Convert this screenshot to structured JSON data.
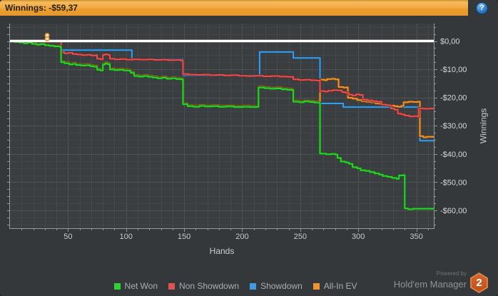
{
  "titlebar": {
    "title": "Winnings: -$59,37",
    "help": "?"
  },
  "colors": {
    "window_bg": "#35383B",
    "plot_bg": "#3B3E41",
    "grid_minor_v": "#46494C",
    "grid_minor_h": "#424548",
    "grid_major": "#4E5255",
    "axis": "#94989B",
    "tick_text": "#C6CACC",
    "zero_line": "#FFFFFF"
  },
  "chart_data": {
    "type": "line",
    "title": "",
    "xlabel": "Hands",
    "ylabel": "Winnings",
    "xlim": [
      0,
      365
    ],
    "ylim": [
      -66.5,
      6.2
    ],
    "grid": true,
    "legend_position": "bottom",
    "x_ticks": [
      50,
      100,
      150,
      200,
      250,
      300,
      350
    ],
    "x_minor_step": 10,
    "y_minor_step": 2.5,
    "y_ticks": [
      {
        "v": 0,
        "label": "$0,00"
      },
      {
        "v": -10,
        "label": "-$10,00"
      },
      {
        "v": -20,
        "label": "-$20,00"
      },
      {
        "v": -30,
        "label": "-$30,00"
      },
      {
        "v": -40,
        "label": "-$40,00"
      },
      {
        "v": -50,
        "label": "-$50,00"
      },
      {
        "v": -60,
        "label": "-$60,00"
      }
    ],
    "markers": [
      {
        "hand": 32,
        "value": 2.0
      },
      {
        "hand": 32,
        "value": 0.75
      }
    ],
    "series": [
      {
        "name": "Net Won",
        "color": "#2FD32F",
        "edge": "#176117",
        "points": [
          [
            0,
            0
          ],
          [
            4,
            -0.3
          ],
          [
            8,
            -0.5
          ],
          [
            12,
            -0.8
          ],
          [
            15,
            -0.6
          ],
          [
            19,
            -1.0
          ],
          [
            23,
            -1.3
          ],
          [
            26,
            -1.1
          ],
          [
            30,
            -1.5
          ],
          [
            34,
            -1.7
          ],
          [
            38,
            -1.9
          ],
          [
            43,
            -2.1
          ],
          [
            44,
            -7.5
          ],
          [
            47,
            -7.9
          ],
          [
            51,
            -8.3
          ],
          [
            54,
            -8.1
          ],
          [
            57,
            -8.5
          ],
          [
            61,
            -8.7
          ],
          [
            65,
            -8.6
          ],
          [
            69,
            -8.9
          ],
          [
            72,
            -9.1
          ],
          [
            75,
            -10.2
          ],
          [
            78,
            -10.4
          ],
          [
            80,
            -8.3
          ],
          [
            82,
            -7.9
          ],
          [
            84,
            -8.2
          ],
          [
            86,
            -10.1
          ],
          [
            90,
            -10.3
          ],
          [
            94,
            -10.2
          ],
          [
            98,
            -10.4
          ],
          [
            102,
            -10.5
          ],
          [
            104,
            -11.3
          ],
          [
            107,
            -12.4
          ],
          [
            111,
            -12.6
          ],
          [
            115,
            -12.4
          ],
          [
            119,
            -12.7
          ],
          [
            123,
            -12.9
          ],
          [
            127,
            -13.2
          ],
          [
            131,
            -13.0
          ],
          [
            135,
            -13.4
          ],
          [
            139,
            -13.2
          ],
          [
            143,
            -13.5
          ],
          [
            147,
            -13.6
          ],
          [
            149,
            -22.4
          ],
          [
            153,
            -23.1
          ],
          [
            158,
            -23.3
          ],
          [
            163,
            -23.0
          ],
          [
            168,
            -23.2
          ],
          [
            174,
            -23.1
          ],
          [
            180,
            -23.3
          ],
          [
            186,
            -23.2
          ],
          [
            193,
            -23.4
          ],
          [
            200,
            -23.3
          ],
          [
            207,
            -23.4
          ],
          [
            213,
            -23.3
          ],
          [
            214,
            -16.5
          ],
          [
            219,
            -16.7
          ],
          [
            224,
            -16.9
          ],
          [
            229,
            -16.8
          ],
          [
            234,
            -17.1
          ],
          [
            239,
            -17.3
          ],
          [
            243,
            -17.4
          ],
          [
            244,
            -21.5
          ],
          [
            249,
            -21.7
          ],
          [
            253,
            -21.4
          ],
          [
            258,
            -21.6
          ],
          [
            262,
            -21.8
          ],
          [
            266,
            -21.9
          ],
          [
            267,
            -39.9
          ],
          [
            272,
            -40.1
          ],
          [
            277,
            -40.0
          ],
          [
            280,
            -40.2
          ],
          [
            282,
            -41.4
          ],
          [
            285,
            -42.7
          ],
          [
            289,
            -43.0
          ],
          [
            292,
            -43.5
          ],
          [
            295,
            -44.7
          ],
          [
            299,
            -45.1
          ],
          [
            302,
            -45.8
          ],
          [
            306,
            -46.0
          ],
          [
            310,
            -46.4
          ],
          [
            314,
            -46.9
          ],
          [
            318,
            -47.3
          ],
          [
            321,
            -47.8
          ],
          [
            325,
            -48.1
          ],
          [
            329,
            -48.5
          ],
          [
            333,
            -48.8
          ],
          [
            335,
            -47.6
          ],
          [
            339,
            -47.5
          ],
          [
            340,
            -59.3
          ],
          [
            343,
            -59.6
          ],
          [
            347,
            -59.4
          ],
          [
            352,
            -59.4
          ],
          [
            358,
            -59.4
          ],
          [
            365,
            -59.37
          ]
        ]
      },
      {
        "name": "Non Showdown",
        "color": "#E05353",
        "edge": "#6E2424",
        "points": [
          [
            0,
            0
          ],
          [
            43,
            0
          ],
          [
            44,
            -4.0
          ],
          [
            47,
            -4.4
          ],
          [
            50,
            -4.2
          ],
          [
            54,
            -4.6
          ],
          [
            58,
            -4.8
          ],
          [
            62,
            -5.0
          ],
          [
            66,
            -4.9
          ],
          [
            70,
            -5.1
          ],
          [
            74,
            -5.0
          ],
          [
            75,
            -6.3
          ],
          [
            78,
            -6.5
          ],
          [
            80,
            -4.9
          ],
          [
            82,
            -4.7
          ],
          [
            84,
            -4.9
          ],
          [
            86,
            -6.3
          ],
          [
            90,
            -6.5
          ],
          [
            95,
            -6.4
          ],
          [
            100,
            -6.6
          ],
          [
            106,
            -6.5
          ],
          [
            112,
            -6.6
          ],
          [
            118,
            -6.5
          ],
          [
            124,
            -6.7
          ],
          [
            130,
            -6.6
          ],
          [
            136,
            -6.8
          ],
          [
            142,
            -6.7
          ],
          [
            147,
            -6.9
          ],
          [
            149,
            -11.7
          ],
          [
            154,
            -11.9
          ],
          [
            160,
            -12.0
          ],
          [
            166,
            -11.9
          ],
          [
            172,
            -12.1
          ],
          [
            178,
            -12.0
          ],
          [
            184,
            -12.2
          ],
          [
            190,
            -12.1
          ],
          [
            197,
            -12.3
          ],
          [
            204,
            -12.4
          ],
          [
            211,
            -12.3
          ],
          [
            218,
            -12.5
          ],
          [
            225,
            -12.4
          ],
          [
            232,
            -12.6
          ],
          [
            239,
            -12.7
          ],
          [
            244,
            -13.6
          ],
          [
            249,
            -13.8
          ],
          [
            254,
            -13.7
          ],
          [
            259,
            -13.9
          ],
          [
            264,
            -14.0
          ],
          [
            267,
            -17.7
          ],
          [
            271,
            -17.9
          ],
          [
            274,
            -17.6
          ],
          [
            278,
            -17.4
          ],
          [
            282,
            -17.5
          ],
          [
            286,
            -18.1
          ],
          [
            289,
            -18.4
          ],
          [
            292,
            -19.0
          ],
          [
            295,
            -19.3
          ],
          [
            298,
            -18.9
          ],
          [
            301,
            -19.1
          ],
          [
            304,
            -20.8
          ],
          [
            308,
            -21.0
          ],
          [
            312,
            -21.3
          ],
          [
            316,
            -21.5
          ],
          [
            320,
            -22.5
          ],
          [
            324,
            -22.7
          ],
          [
            328,
            -23.9
          ],
          [
            331,
            -24.3
          ],
          [
            334,
            -25.7
          ],
          [
            337,
            -26.0
          ],
          [
            340,
            -26.4
          ],
          [
            344,
            -26.7
          ],
          [
            348,
            -26.6
          ],
          [
            351,
            -26.8
          ],
          [
            352,
            -23.9
          ],
          [
            357,
            -24.0
          ],
          [
            361,
            -23.9
          ],
          [
            365,
            -23.9
          ]
        ]
      },
      {
        "name": "Showdown",
        "color": "#419BE0",
        "edge": "#1A476B",
        "points": [
          [
            0,
            0
          ],
          [
            43,
            0
          ],
          [
            44,
            -3.2
          ],
          [
            104,
            -3.2
          ],
          [
            105,
            -6.5
          ],
          [
            148,
            -6.5
          ],
          [
            149,
            -12.2
          ],
          [
            214,
            -12.3
          ],
          [
            215,
            -3.9
          ],
          [
            243,
            -3.9
          ],
          [
            244,
            -6.0
          ],
          [
            266,
            -6.0
          ],
          [
            267,
            -22.1
          ],
          [
            286,
            -22.1
          ],
          [
            287,
            -23.4
          ],
          [
            352,
            -23.4
          ],
          [
            353,
            -35.3
          ],
          [
            365,
            -35.3
          ]
        ]
      },
      {
        "name": "All-In EV",
        "color": "#EE9330",
        "edge": "#6E4413",
        "points": [
          [
            0,
            0
          ],
          [
            4,
            -0.2
          ],
          [
            8,
            -0.4
          ],
          [
            12,
            -0.6
          ],
          [
            15,
            -0.5
          ],
          [
            19,
            -0.8
          ],
          [
            23,
            -1.1
          ],
          [
            26,
            -0.9
          ],
          [
            30,
            -1.3
          ],
          [
            34,
            -1.5
          ],
          [
            38,
            -1.7
          ],
          [
            43,
            -1.9
          ],
          [
            44,
            -7.2
          ],
          [
            47,
            -7.6
          ],
          [
            51,
            -8.0
          ],
          [
            54,
            -7.8
          ],
          [
            57,
            -8.2
          ],
          [
            61,
            -8.4
          ],
          [
            65,
            -8.3
          ],
          [
            69,
            -8.6
          ],
          [
            72,
            -8.8
          ],
          [
            75,
            -9.9
          ],
          [
            78,
            -10.1
          ],
          [
            80,
            -8.0
          ],
          [
            82,
            -7.6
          ],
          [
            84,
            -7.9
          ],
          [
            86,
            -9.8
          ],
          [
            90,
            -10.0
          ],
          [
            94,
            -9.9
          ],
          [
            98,
            -10.1
          ],
          [
            102,
            -10.2
          ],
          [
            104,
            -11.0
          ],
          [
            107,
            -12.1
          ],
          [
            111,
            -12.3
          ],
          [
            115,
            -12.1
          ],
          [
            119,
            -12.4
          ],
          [
            123,
            -12.6
          ],
          [
            127,
            -12.9
          ],
          [
            131,
            -12.7
          ],
          [
            135,
            -13.1
          ],
          [
            139,
            -12.9
          ],
          [
            143,
            -13.2
          ],
          [
            147,
            -13.3
          ],
          [
            149,
            -22.1
          ],
          [
            153,
            -22.8
          ],
          [
            158,
            -23.0
          ],
          [
            163,
            -22.7
          ],
          [
            168,
            -22.9
          ],
          [
            174,
            -22.8
          ],
          [
            180,
            -23.0
          ],
          [
            186,
            -22.9
          ],
          [
            193,
            -23.1
          ],
          [
            200,
            -23.0
          ],
          [
            207,
            -23.1
          ],
          [
            213,
            -23.0
          ],
          [
            214,
            -16.2
          ],
          [
            219,
            -16.4
          ],
          [
            224,
            -16.6
          ],
          [
            229,
            -16.5
          ],
          [
            234,
            -16.8
          ],
          [
            239,
            -17.0
          ],
          [
            243,
            -17.1
          ],
          [
            244,
            -21.2
          ],
          [
            249,
            -21.4
          ],
          [
            253,
            -21.1
          ],
          [
            258,
            -21.3
          ],
          [
            262,
            -21.5
          ],
          [
            266,
            -21.6
          ],
          [
            267,
            -13.7
          ],
          [
            271,
            -13.9
          ],
          [
            273,
            -13.5
          ],
          [
            277,
            -13.4
          ],
          [
            280,
            -13.6
          ],
          [
            283,
            -16.3
          ],
          [
            287,
            -16.5
          ],
          [
            290,
            -16.4
          ],
          [
            291,
            -20.1
          ],
          [
            295,
            -20.4
          ],
          [
            299,
            -20.9
          ],
          [
            303,
            -21.3
          ],
          [
            307,
            -21.5
          ],
          [
            311,
            -21.7
          ],
          [
            315,
            -22.1
          ],
          [
            319,
            -22.4
          ],
          [
            323,
            -22.7
          ],
          [
            327,
            -22.9
          ],
          [
            331,
            -23.1
          ],
          [
            334,
            -23.3
          ],
          [
            337,
            -23.0
          ],
          [
            339,
            -21.7
          ],
          [
            343,
            -21.5
          ],
          [
            347,
            -21.6
          ],
          [
            351,
            -21.5
          ],
          [
            353,
            -33.7
          ],
          [
            356,
            -34.1
          ],
          [
            359,
            -33.9
          ],
          [
            365,
            -33.9
          ]
        ]
      }
    ]
  },
  "legend": [
    {
      "label": "Net Won",
      "color": "#2FD32F"
    },
    {
      "label": "Non Showdown",
      "color": "#E05353"
    },
    {
      "label": "Showdown",
      "color": "#419BE0"
    },
    {
      "label": "All-In EV",
      "color": "#EE9330"
    }
  ],
  "footer": {
    "powered_by": "Powered by",
    "brand": "Hold'em Manager",
    "badge": "2"
  }
}
